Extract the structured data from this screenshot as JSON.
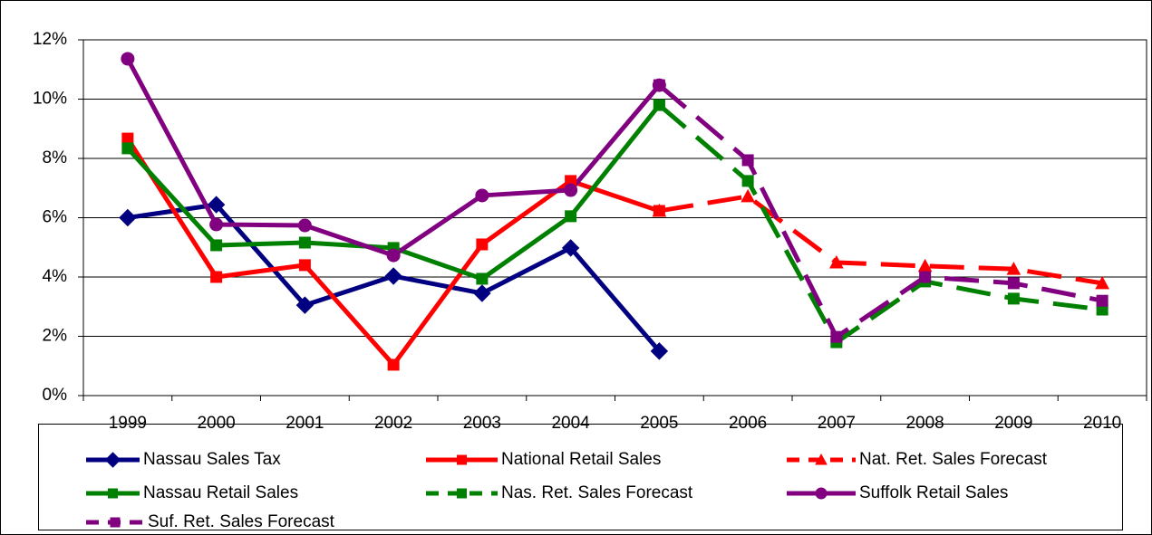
{
  "chart_data": {
    "type": "line",
    "categories": [
      "1999",
      "2000",
      "2001",
      "2002",
      "2003",
      "2004",
      "2005",
      "2006",
      "2007",
      "2008",
      "2009",
      "2010"
    ],
    "ylim": [
      0,
      12
    ],
    "yticks": [
      {
        "value": 0,
        "label": "0%"
      },
      {
        "value": 2,
        "label": "2%"
      },
      {
        "value": 4,
        "label": "4%"
      },
      {
        "value": 6,
        "label": "6%"
      },
      {
        "value": 8,
        "label": "8%"
      },
      {
        "value": 10,
        "label": "10%"
      },
      {
        "value": 12,
        "label": "12%"
      }
    ],
    "grid": true,
    "legend": "bottom",
    "series": [
      {
        "name": "Nassau Sales Tax",
        "color": "#000080",
        "marker": "diamond",
        "dashed": false,
        "values": [
          6.0,
          6.44,
          3.05,
          4.03,
          3.45,
          4.98,
          1.5,
          null,
          null,
          null,
          null,
          null
        ]
      },
      {
        "name": "National Retail Sales",
        "color": "#ff0000",
        "marker": "square",
        "dashed": false,
        "values": [
          8.67,
          4.0,
          4.4,
          1.04,
          5.1,
          7.24,
          6.23,
          null,
          null,
          null,
          null,
          null
        ]
      },
      {
        "name": "Nat. Ret. Sales Forecast",
        "color": "#ff0000",
        "marker": "triangle",
        "dashed": true,
        "values": [
          null,
          null,
          null,
          null,
          null,
          null,
          6.23,
          6.72,
          4.49,
          4.37,
          4.27,
          3.79
        ]
      },
      {
        "name": "Nassau Retail Sales",
        "color": "#008000",
        "marker": "square",
        "dashed": false,
        "values": [
          8.34,
          5.07,
          5.16,
          4.98,
          3.94,
          6.05,
          9.8,
          null,
          null,
          null,
          null,
          null
        ]
      },
      {
        "name": "Nas. Ret. Sales Forecast",
        "color": "#008000",
        "marker": "square",
        "dashed": true,
        "values": [
          null,
          null,
          null,
          null,
          null,
          null,
          9.8,
          7.24,
          1.8,
          3.85,
          3.27,
          2.9
        ]
      },
      {
        "name": "Suffolk Retail Sales",
        "color": "#800080",
        "marker": "circle",
        "dashed": false,
        "values": [
          11.36,
          5.77,
          5.74,
          4.73,
          6.75,
          6.93,
          10.47,
          null,
          null,
          null,
          null,
          null
        ]
      },
      {
        "name": "Suf. Ret. Sales Forecast",
        "color": "#800080",
        "marker": "square",
        "dashed": true,
        "values": [
          null,
          null,
          null,
          null,
          null,
          null,
          10.47,
          7.94,
          1.98,
          4.0,
          3.79,
          3.2
        ]
      }
    ]
  }
}
